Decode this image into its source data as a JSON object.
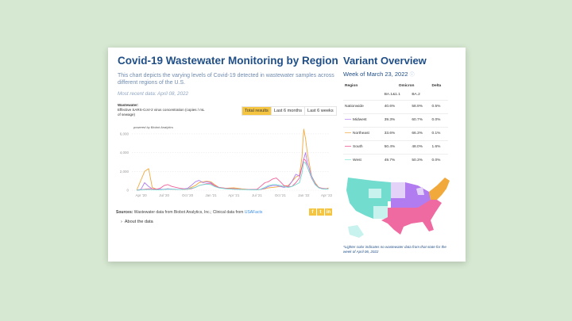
{
  "left": {
    "title": "Covid-19 Wastewater Monitoring by Region",
    "description": "This chart depicts the varying levels of Covid-19 detected in wastewater samples across different regions of the U.S.",
    "most_recent": "Most recent data: April 08, 2022",
    "wastewater_label": "Wastewater:",
    "wastewater_sub": "Effective SARS-CoV-2 virus concentration (copies / mL of sewage)",
    "buttons": [
      "Total results",
      "Last 6 months",
      "Last 6 weeks"
    ],
    "active_button": "Total results",
    "sources_label": "Sources:",
    "sources_text": " Wastewater data from Biobot Analytics, Inc.; Clinical data from ",
    "sources_link": "USAFacts",
    "social": [
      "f",
      "t",
      "in"
    ],
    "about": "About the data"
  },
  "chart_data": {
    "type": "line",
    "annotation": "powered by Biobot Analytics",
    "ylim": [
      0,
      6500
    ],
    "yticks": [
      0,
      2000,
      4000,
      6000
    ],
    "ytick_labels": [
      "0",
      "2,000",
      "4,000",
      "6,000"
    ],
    "xtick_labels": [
      "Apr '20",
      "Jul '20",
      "Oct '20",
      "Jan '21",
      "Apr '21",
      "Jul '21",
      "Oct '21",
      "Jan '22",
      "Apr '22"
    ],
    "xticks": [
      "2020-04-01",
      "2020-07-01",
      "2020-10-01",
      "2021-01-01",
      "2021-04-01",
      "2021-07-01",
      "2021-10-01",
      "2022-01-01",
      "2022-04-01"
    ],
    "grid": true,
    "x": [
      "2020-03-15",
      "2020-04-01",
      "2020-04-15",
      "2020-05-01",
      "2020-05-15",
      "2020-06-01",
      "2020-06-15",
      "2020-07-01",
      "2020-07-15",
      "2020-08-01",
      "2020-09-01",
      "2020-10-01",
      "2020-10-15",
      "2020-11-01",
      "2020-11-15",
      "2020-12-01",
      "2020-12-15",
      "2021-01-01",
      "2021-01-15",
      "2021-02-01",
      "2021-03-01",
      "2021-04-01",
      "2021-05-01",
      "2021-06-01",
      "2021-07-01",
      "2021-07-15",
      "2021-08-01",
      "2021-08-15",
      "2021-09-01",
      "2021-09-15",
      "2021-10-01",
      "2021-10-15",
      "2021-11-01",
      "2021-11-15",
      "2021-12-01",
      "2021-12-15",
      "2021-12-25",
      "2022-01-01",
      "2022-01-08",
      "2022-01-15",
      "2022-02-01",
      "2022-02-15",
      "2022-03-01",
      "2022-03-15",
      "2022-04-01",
      "2022-04-08"
    ],
    "series": [
      {
        "name": "Northeast",
        "color": "#f2a93b",
        "values": [
          0,
          1100,
          2000,
          2300,
          300,
          100,
          80,
          100,
          150,
          100,
          80,
          100,
          300,
          500,
          800,
          900,
          950,
          900,
          600,
          300,
          200,
          250,
          150,
          80,
          60,
          80,
          150,
          250,
          300,
          350,
          400,
          450,
          500,
          900,
          1400,
          1600,
          3500,
          6500,
          5500,
          4000,
          1500,
          800,
          300,
          150,
          150,
          250
        ]
      },
      {
        "name": "Midwest",
        "color": "#b07cf0",
        "values": [
          0,
          100,
          800,
          400,
          150,
          100,
          100,
          100,
          150,
          120,
          80,
          200,
          500,
          900,
          1050,
          800,
          900,
          800,
          500,
          300,
          150,
          150,
          100,
          60,
          60,
          80,
          200,
          400,
          500,
          500,
          400,
          300,
          400,
          900,
          1700,
          1500,
          2500,
          3300,
          4000,
          3000,
          1500,
          700,
          250,
          150,
          120,
          150
        ]
      },
      {
        "name": "South",
        "color": "#f0609a",
        "values": [
          0,
          50,
          100,
          150,
          150,
          100,
          200,
          500,
          600,
          400,
          200,
          100,
          150,
          300,
          500,
          600,
          700,
          700,
          500,
          300,
          200,
          150,
          100,
          80,
          100,
          400,
          800,
          900,
          1200,
          1300,
          900,
          500,
          400,
          400,
          800,
          1300,
          2500,
          3300,
          3200,
          2500,
          1300,
          600,
          300,
          200,
          150,
          180
        ]
      },
      {
        "name": "West",
        "color": "#6fdcd0",
        "values": [
          0,
          30,
          60,
          80,
          60,
          50,
          50,
          80,
          100,
          100,
          80,
          100,
          200,
          300,
          500,
          600,
          650,
          600,
          400,
          250,
          150,
          100,
          80,
          60,
          50,
          100,
          300,
          500,
          600,
          600,
          500,
          400,
          300,
          400,
          600,
          800,
          1800,
          3000,
          2900,
          2500,
          1400,
          600,
          250,
          150,
          120,
          150
        ]
      }
    ]
  },
  "right": {
    "title": "Variant Overview",
    "week": "Week of March 23, 2022",
    "info_icon": "info-circle-icon",
    "headers": {
      "region": "Region",
      "omicron": "Omicron",
      "delta": "Delta",
      "ba1": "BA.1&1.1",
      "ba2": "BA.2"
    },
    "rows": [
      {
        "region": "Nationwide",
        "ba1": "40.6%",
        "ba2": "58.9%",
        "delta": "0.5%",
        "color": ""
      },
      {
        "region": "Midwest",
        "ba1": "39.3%",
        "ba2": "60.7%",
        "delta": "0.0%",
        "color": "#c9a6f5"
      },
      {
        "region": "Northeast",
        "ba1": "33.6%",
        "ba2": "66.3%",
        "delta": "0.1%",
        "color": "#f2c27a"
      },
      {
        "region": "South",
        "ba1": "50.4%",
        "ba2": "48.0%",
        "delta": "1.6%",
        "color": "#f07aa8"
      },
      {
        "region": "West",
        "ba1": "49.7%",
        "ba2": "50.3%",
        "delta": "0.0%",
        "color": "#a8ece4"
      }
    ],
    "map_colors": {
      "west": "#72dccf",
      "midwest": "#b07cf0",
      "northeast": "#f2a93b",
      "south": "#ef6aa0",
      "west_light": "#c8f2ed",
      "midwest_light": "#e3d3f8"
    },
    "note": "*Lighter color indicates no wastewater data from that state for the week of April 06, 2022"
  }
}
